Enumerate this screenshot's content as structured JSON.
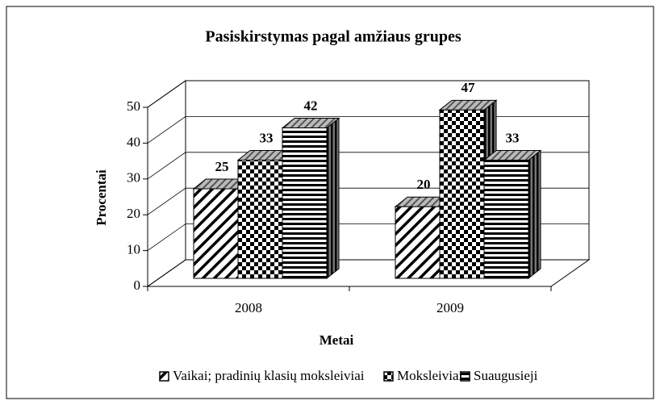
{
  "chart_data": {
    "type": "bar3d",
    "title": "Pasiskirstymas pagal amžiaus grupes",
    "x_label": "Metai",
    "y_label": "Procentai",
    "categories": [
      "2008",
      "2009"
    ],
    "series": [
      {
        "name": "Vaikai; pradinių klasių moksleiviai",
        "pattern": "diagonal",
        "color": "#000000",
        "values": [
          25,
          20
        ]
      },
      {
        "name": "Moksleiviai",
        "pattern": "checker",
        "color": "#000000",
        "values": [
          33,
          47
        ]
      },
      {
        "name": "Suaugusieji",
        "pattern": "horizontal",
        "color": "#000000",
        "values": [
          42,
          33
        ]
      }
    ],
    "ylim": [
      0,
      50
    ],
    "yticks": [
      0,
      10,
      20,
      30,
      40,
      50
    ],
    "grid": true,
    "legend": "bottom"
  }
}
